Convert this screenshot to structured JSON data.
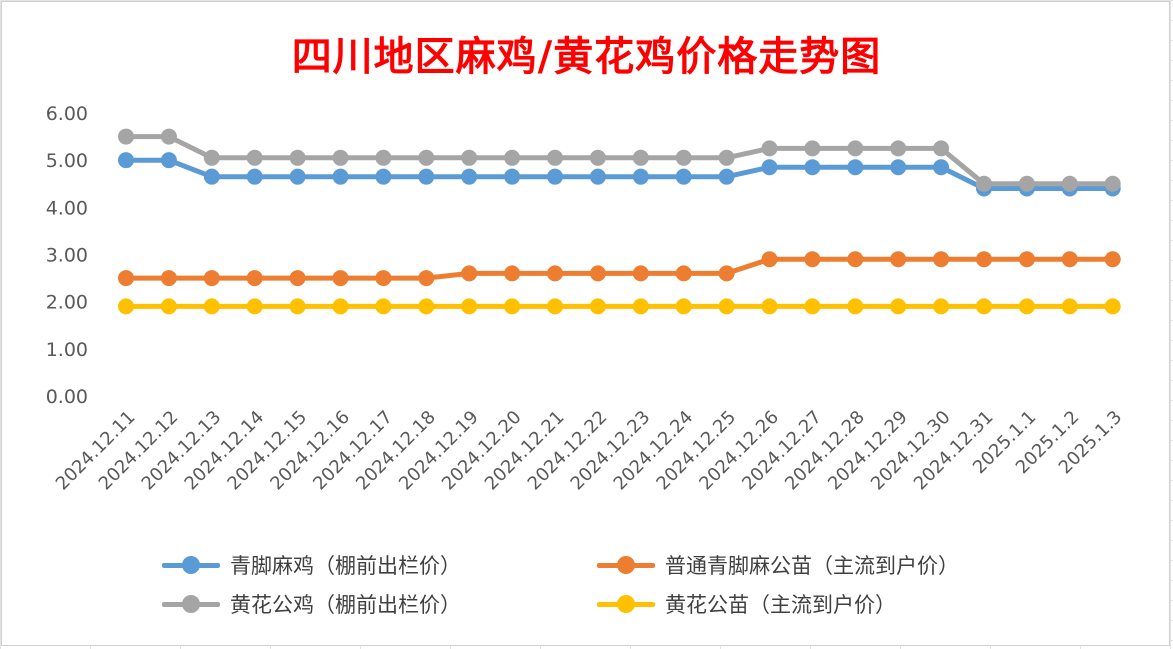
{
  "title": "四川地区麻鸡/黄花鸡价格走势图",
  "chart_data": {
    "type": "line",
    "title": "四川地区麻鸡/黄花鸡价格走势图",
    "xlabel": "",
    "ylabel": "",
    "categories": [
      "2024.12.11",
      "2024.12.12",
      "2024.12.13",
      "2024.12.14",
      "2024.12.15",
      "2024.12.16",
      "2024.12.17",
      "2024.12.18",
      "2024.12.19",
      "2024.12.20",
      "2024.12.21",
      "2024.12.22",
      "2024.12.23",
      "2024.12.24",
      "2024.12.25",
      "2024.12.26",
      "2024.12.27",
      "2024.12.28",
      "2024.12.29",
      "2024.12.30",
      "2024.12.31",
      "2025.1.1",
      "2025.1.2",
      "2025.1.3"
    ],
    "ylim": [
      0,
      6
    ],
    "yticks": [
      "0.00",
      "1.00",
      "2.00",
      "3.00",
      "4.00",
      "5.00",
      "6.00"
    ],
    "grid": false,
    "legend_position": "bottom",
    "series": [
      {
        "name": "青脚麻鸡（棚前出栏价）",
        "color": "#5b9bd5",
        "values": [
          5.0,
          5.0,
          4.65,
          4.65,
          4.65,
          4.65,
          4.65,
          4.65,
          4.65,
          4.65,
          4.65,
          4.65,
          4.65,
          4.65,
          4.65,
          4.85,
          4.85,
          4.85,
          4.85,
          4.85,
          4.4,
          4.4,
          4.4,
          4.4
        ]
      },
      {
        "name": "普通青脚麻公苗（主流到户价）",
        "color": "#ed7d31",
        "values": [
          2.5,
          2.5,
          2.5,
          2.5,
          2.5,
          2.5,
          2.5,
          2.5,
          2.6,
          2.6,
          2.6,
          2.6,
          2.6,
          2.6,
          2.6,
          2.9,
          2.9,
          2.9,
          2.9,
          2.9,
          2.9,
          2.9,
          2.9,
          2.9
        ]
      },
      {
        "name": "黄花公鸡（棚前出栏价）",
        "color": "#a5a5a5",
        "values": [
          5.5,
          5.5,
          5.05,
          5.05,
          5.05,
          5.05,
          5.05,
          5.05,
          5.05,
          5.05,
          5.05,
          5.05,
          5.05,
          5.05,
          5.05,
          5.25,
          5.25,
          5.25,
          5.25,
          5.25,
          4.5,
          4.5,
          4.5,
          4.5
        ]
      },
      {
        "name": "黄花公苗（主流到户价）",
        "color": "#ffc000",
        "values": [
          1.9,
          1.9,
          1.9,
          1.9,
          1.9,
          1.9,
          1.9,
          1.9,
          1.9,
          1.9,
          1.9,
          1.9,
          1.9,
          1.9,
          1.9,
          1.9,
          1.9,
          1.9,
          1.9,
          1.9,
          1.9,
          1.9,
          1.9,
          1.9
        ]
      }
    ]
  }
}
